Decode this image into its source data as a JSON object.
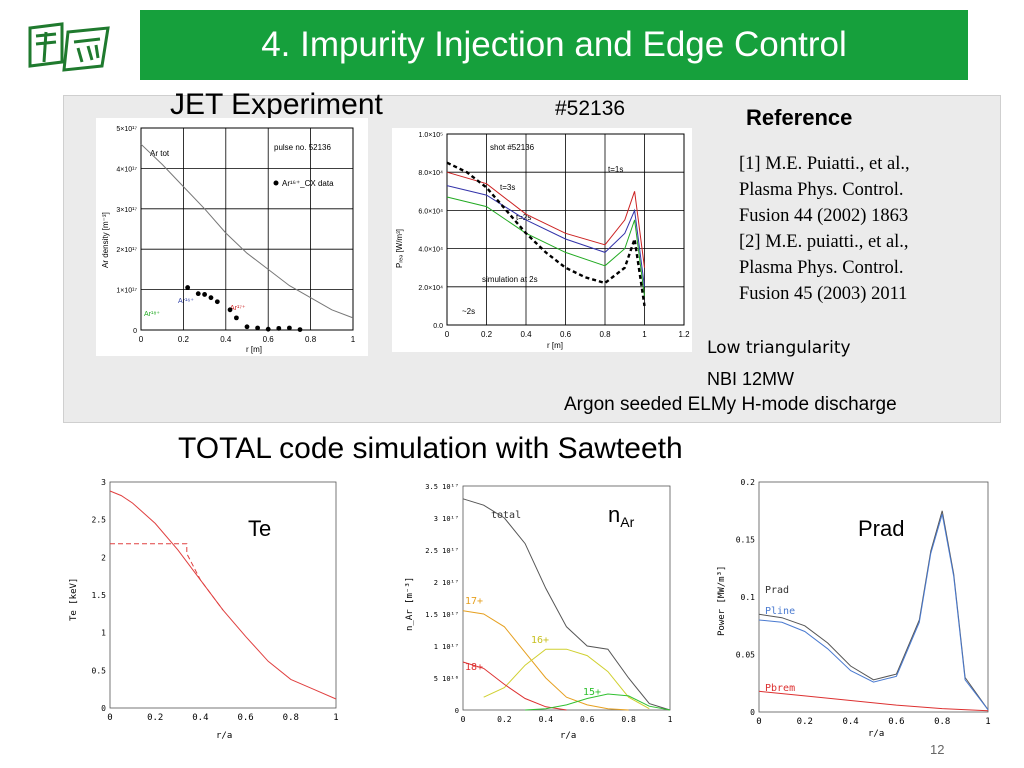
{
  "slide": {
    "title": "4. Impurity Injection and Edge Control",
    "page_number": "12"
  },
  "jet": {
    "heading": "JET Experiment",
    "shot_label": "#52136",
    "reference_heading": "Reference",
    "references": [
      "[1] M.E. Puiatti., et al.,",
      "Plasma Phys. Control.",
      "Fusion 44 (2002) 1863",
      "[2] M.E. puiatti., et al.,",
      "Plasma Phys. Control.",
      "Fusion 45 (2003) 2011"
    ],
    "notes": [
      "Low triangularity",
      "NBI 12MW",
      "Argon seeded ELMy H-mode discharge"
    ]
  },
  "total_heading": "TOTAL code simulation with Sawteeth",
  "chart_data": [
    {
      "type": "scatter",
      "xlabel": "r [m]",
      "ylabel": "Ar density [m⁻³]",
      "xticks": [
        "0",
        "0.2",
        "0.4",
        "0.6",
        "0.8",
        "1"
      ],
      "yticks": [
        "0",
        "1×10¹⁷",
        "2×10¹⁷",
        "3×10¹⁷",
        "4×10¹⁷",
        "5×10¹⁷"
      ],
      "xlim": [
        0,
        1
      ],
      "ylim": [
        0,
        5e+17
      ],
      "annotations": [
        "pulse no. 52136",
        "Ar¹⁶⁺_CX data",
        "Ar tot",
        "Ar¹⁶⁺",
        "Ar¹⁷⁺",
        "Ar¹⁸⁺"
      ],
      "series": [
        {
          "name": "Ar tot",
          "color": "#777777",
          "x": [
            0,
            0.1,
            0.2,
            0.3,
            0.4,
            0.5,
            0.6,
            0.7,
            0.8,
            0.9,
            1.0
          ],
          "y": [
            4.6e+17,
            4.1e+17,
            3.55e+17,
            3e+17,
            2.4e+17,
            1.9e+17,
            1.5e+17,
            1.1e+17,
            8e+16,
            5e+16,
            3e+16
          ]
        },
        {
          "name": "Ar¹⁶⁺_CX data",
          "color": "#000000",
          "x": [
            0.22,
            0.27,
            0.3,
            0.33,
            0.36,
            0.42,
            0.45,
            0.5,
            0.55,
            0.6,
            0.65,
            0.7,
            0.75
          ],
          "y": [
            1.05e+17,
            9e+16,
            8.8e+16,
            8e+16,
            7e+16,
            5e+16,
            3e+16,
            8000000000000000.0,
            5000000000000000.0,
            2000000000000000.0,
            4000000000000000.0,
            5000000000000000.0,
            1000000000000000.0
          ]
        }
      ]
    },
    {
      "type": "line",
      "xlabel": "r [m]",
      "ylabel": "Pᵣₑₔ [W/m³]",
      "xticks": [
        "0",
        "0.2",
        "0.4",
        "0.6",
        "0.8",
        "1",
        "1.2"
      ],
      "yticks": [
        "0.0",
        "2.0×10⁴",
        "4.0×10⁴",
        "6.0×10⁴",
        "8.0×10⁴",
        "1.0×10⁵"
      ],
      "xlim": [
        0,
        1.2
      ],
      "ylim": [
        0,
        100000
      ],
      "annotations": [
        "shot #52136",
        "t=1s",
        "t=3s",
        "t=2s",
        "simulation at 2s",
        "~2s"
      ],
      "series": [
        {
          "name": "t=1s",
          "color": "#cc2222",
          "x": [
            0,
            0.2,
            0.4,
            0.6,
            0.8,
            0.9,
            0.95,
            1.0
          ],
          "y": [
            80000,
            74000,
            58000,
            48000,
            42000,
            55000,
            70000,
            30000
          ]
        },
        {
          "name": "t=3s",
          "color": "#3333aa",
          "x": [
            0,
            0.2,
            0.4,
            0.6,
            0.8,
            0.9,
            0.95,
            1.0
          ],
          "y": [
            73000,
            68000,
            55000,
            45000,
            38000,
            48000,
            60000,
            20000
          ]
        },
        {
          "name": "t=2s",
          "color": "#22aa22",
          "x": [
            0,
            0.2,
            0.4,
            0.6,
            0.8,
            0.9,
            0.95,
            1.0
          ],
          "y": [
            67000,
            62000,
            48000,
            38000,
            31000,
            40000,
            55000,
            15000
          ]
        },
        {
          "name": "simulation at 2s",
          "color": "#000000",
          "x": [
            0,
            0.1,
            0.2,
            0.3,
            0.4,
            0.5,
            0.6,
            0.7,
            0.8,
            0.9,
            0.95,
            1.0
          ],
          "y": [
            85000,
            80000,
            72000,
            60000,
            48000,
            38000,
            30000,
            25000,
            22000,
            30000,
            45000,
            10000
          ]
        }
      ]
    },
    {
      "type": "line",
      "xlabel": "r/a",
      "ylabel": "Te [keV]",
      "label": "Te",
      "xticks": [
        "0",
        "0.2",
        "0.4",
        "0.6",
        "0.8",
        "1"
      ],
      "yticks": [
        "0",
        "0.5",
        "1",
        "1.5",
        "2",
        "2.5",
        "3"
      ],
      "xlim": [
        0,
        1
      ],
      "ylim": [
        0,
        3
      ],
      "series": [
        {
          "color": "#e04040",
          "x": [
            0,
            0.05,
            0.1,
            0.2,
            0.3,
            0.4,
            0.5,
            0.6,
            0.7,
            0.8,
            0.9,
            1.0
          ],
          "y": [
            2.88,
            2.82,
            2.72,
            2.45,
            2.1,
            1.7,
            1.3,
            0.95,
            0.62,
            0.38,
            0.25,
            0.12
          ]
        },
        {
          "color": "#e04040",
          "x": [
            0,
            0.34,
            0.34,
            0.4,
            0.5
          ],
          "y": [
            2.18,
            2.18,
            2.05,
            1.7,
            1.3
          ]
        }
      ]
    },
    {
      "type": "line",
      "xlabel": "r/a",
      "ylabel": "n_Ar [m⁻³]",
      "label": "n_Ar",
      "xticks": [
        "0",
        "0.2",
        "0.4",
        "0.6",
        "0.8",
        "1"
      ],
      "yticks": [
        "0",
        "5 10¹⁶",
        "1 10¹⁷",
        "1.5 10¹⁷",
        "2 10¹⁷",
        "2.5 10¹⁷",
        "3 10¹⁷",
        "3.5 10¹⁷"
      ],
      "xlim": [
        0,
        1
      ],
      "ylim": [
        0,
        3.5e+17
      ],
      "series": [
        {
          "name": "total",
          "color": "#555555",
          "x": [
            0,
            0.1,
            0.2,
            0.3,
            0.4,
            0.5,
            0.6,
            0.7,
            0.8,
            0.9,
            1.0
          ],
          "y": [
            3.3e+17,
            3.2e+17,
            3e+17,
            2.6e+17,
            1.9e+17,
            1.3e+17,
            1e+17,
            9.5e+16,
            5e+16,
            1e+16,
            0
          ]
        },
        {
          "name": "17+",
          "color": "#e6a020",
          "x": [
            0,
            0.1,
            0.2,
            0.3,
            0.4,
            0.5,
            0.6,
            0.7,
            0.8
          ],
          "y": [
            1.55e+17,
            1.5e+17,
            1.3e+17,
            9e+16,
            5e+16,
            2e+16,
            8000000000000000.0,
            2000000000000000.0,
            0
          ]
        },
        {
          "name": "16+",
          "color": "#d0d030",
          "x": [
            0.1,
            0.2,
            0.3,
            0.4,
            0.5,
            0.6,
            0.7,
            0.8,
            0.9
          ],
          "y": [
            2e+16,
            3.5e+16,
            7e+16,
            9.5e+16,
            9.5e+16,
            8.5e+16,
            6e+16,
            2e+16,
            2000000000000000.0
          ]
        },
        {
          "name": "18+",
          "color": "#dd3030",
          "x": [
            0,
            0.1,
            0.2,
            0.3,
            0.4,
            0.5
          ],
          "y": [
            7.5e+16,
            6.5e+16,
            4e+16,
            1.8e+16,
            5000000000000000.0,
            0
          ]
        },
        {
          "name": "15+",
          "color": "#30c030",
          "x": [
            0.3,
            0.4,
            0.5,
            0.6,
            0.7,
            0.8,
            0.9,
            1.0
          ],
          "y": [
            0,
            2000000000000000.0,
            8000000000000000.0,
            1.8e+16,
            2.5e+16,
            2.2e+16,
            6000000000000000.0,
            0
          ]
        }
      ]
    },
    {
      "type": "line",
      "xlabel": "r/a",
      "ylabel": "Power [MW/m³]",
      "label": "Prad",
      "xticks": [
        "0",
        "0.2",
        "0.4",
        "0.6",
        "0.8",
        "1"
      ],
      "yticks": [
        "0",
        "0.05",
        "0.1",
        "0.15",
        "0.2"
      ],
      "xlim": [
        0,
        1
      ],
      "ylim": [
        0,
        0.2
      ],
      "series": [
        {
          "name": "Prad",
          "color": "#555555",
          "x": [
            0,
            0.1,
            0.2,
            0.3,
            0.4,
            0.5,
            0.6,
            0.7,
            0.75,
            0.8,
            0.85,
            0.9,
            1.0
          ],
          "y": [
            0.085,
            0.082,
            0.075,
            0.06,
            0.04,
            0.028,
            0.033,
            0.08,
            0.14,
            0.175,
            0.12,
            0.03,
            0.002
          ]
        },
        {
          "name": "Pline",
          "color": "#4a7ad0",
          "x": [
            0,
            0.1,
            0.2,
            0.3,
            0.4,
            0.5,
            0.6,
            0.7,
            0.75,
            0.8,
            0.85,
            0.9,
            1.0
          ],
          "y": [
            0.08,
            0.078,
            0.07,
            0.055,
            0.036,
            0.026,
            0.031,
            0.078,
            0.138,
            0.172,
            0.118,
            0.028,
            0.002
          ]
        },
        {
          "name": "Pbrem",
          "color": "#dd3030",
          "x": [
            0,
            0.2,
            0.4,
            0.6,
            0.8,
            1.0
          ],
          "y": [
            0.018,
            0.014,
            0.01,
            0.006,
            0.003,
            0.001
          ]
        }
      ]
    }
  ]
}
